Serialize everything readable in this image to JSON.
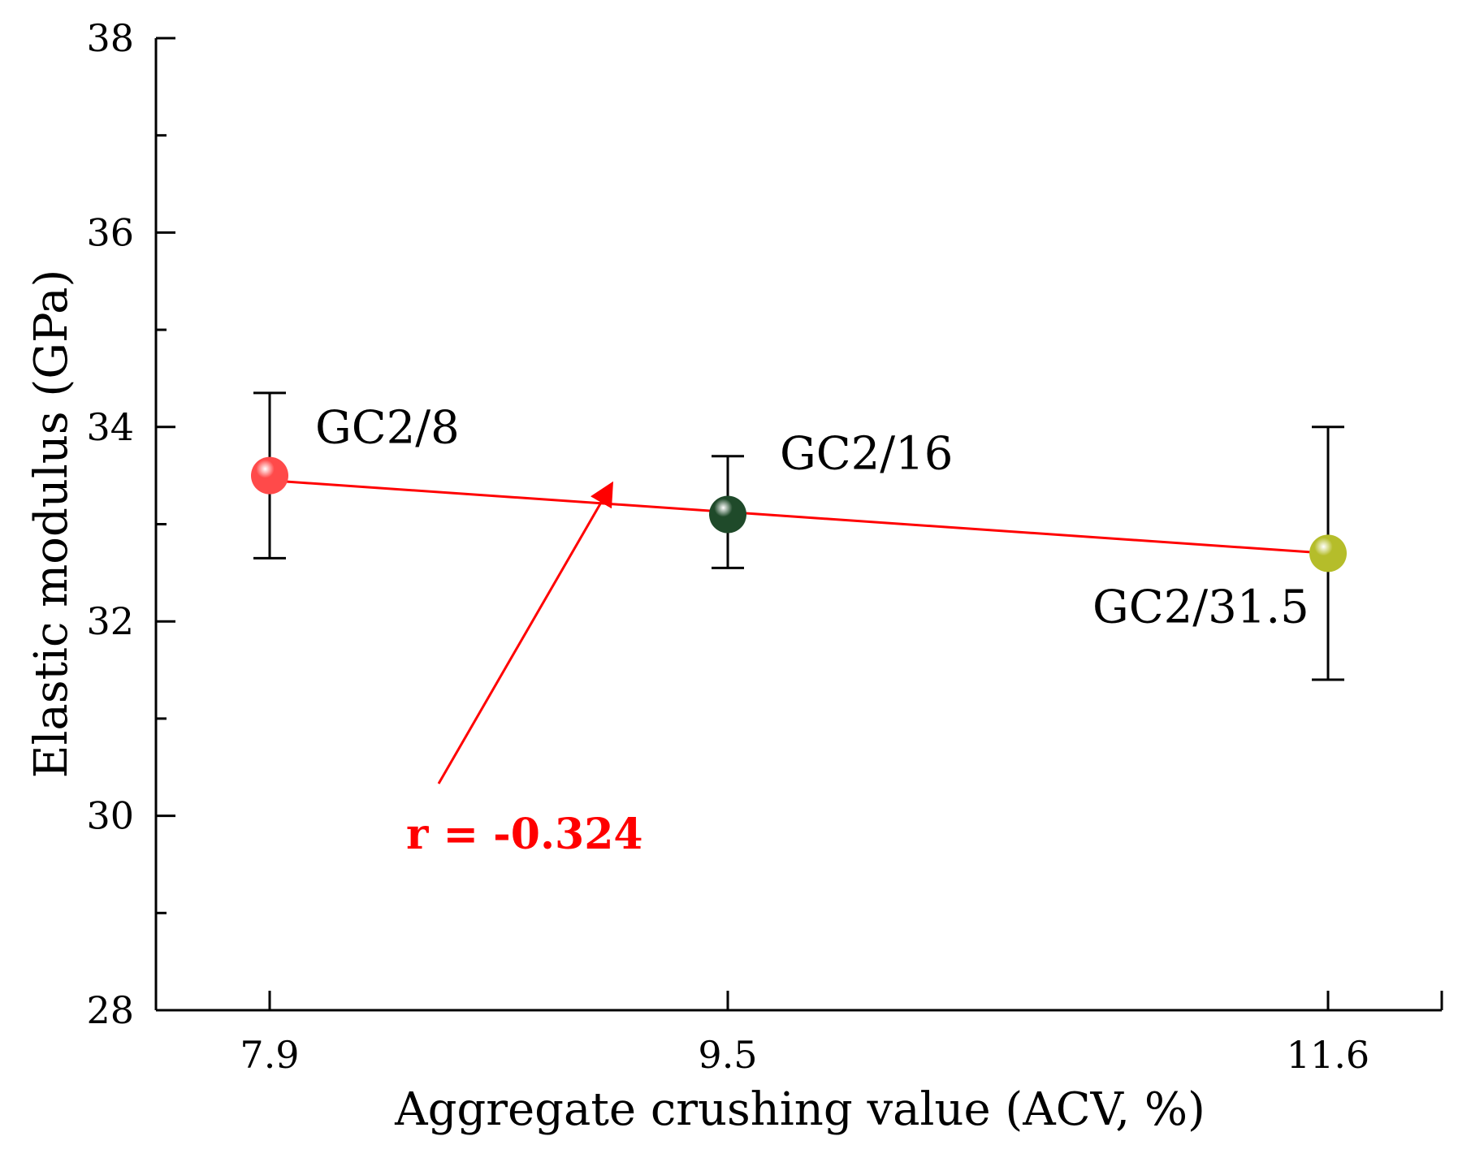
{
  "chart_data": {
    "type": "scatter",
    "title": "",
    "xlabel": "Aggregate crushing value (ACV, %)",
    "ylabel": "Elastic modulus (GPa)",
    "ylim": [
      28,
      38
    ],
    "x_ticks": [
      "7.9",
      "9.5",
      "11.6"
    ],
    "y_ticks": [
      "28",
      "30",
      "32",
      "34",
      "36",
      "38"
    ],
    "points": [
      {
        "label": "GC2/8",
        "x": 7.9,
        "y": 33.5,
        "err_low": 32.65,
        "err_high": 34.35,
        "color": "#ff4a4a"
      },
      {
        "label": "GC2/16",
        "x": 9.5,
        "y": 33.1,
        "err_low": 32.55,
        "err_high": 33.7,
        "color": "#1f4a2a"
      },
      {
        "label": "GC2/31.5",
        "x": 11.6,
        "y": 32.7,
        "err_low": 31.4,
        "err_high": 34.0,
        "color": "#b5bd2a"
      }
    ],
    "fit_line": {
      "x": [
        7.9,
        11.6
      ],
      "y": [
        33.45,
        32.7
      ],
      "color": "#ff0000"
    },
    "annotation": {
      "text": "r = -0.324",
      "color": "#ff0000"
    }
  }
}
